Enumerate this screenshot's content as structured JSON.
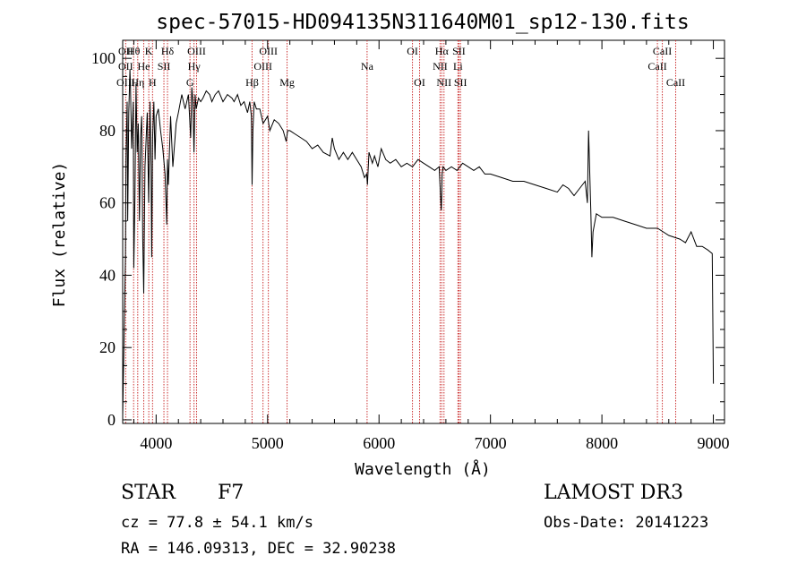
{
  "chart_data": {
    "type": "line",
    "title": "spec-57015-HD094135N311640M01_sp12-130.fits",
    "xlabel": "Wavelength (Å)",
    "ylabel": "Flux (relative)",
    "xlim": [
      3700,
      9100
    ],
    "ylim": [
      -1,
      105
    ],
    "xticks": [
      4000,
      5000,
      6000,
      7000,
      8000,
      9000
    ],
    "xtick_labels": [
      "4000",
      "5000",
      "6000",
      "7000",
      "8000",
      "9000"
    ],
    "yticks": [
      0,
      20,
      40,
      60,
      80,
      100
    ],
    "ytick_labels": [
      "0",
      "20",
      "40",
      "60",
      "80",
      "100"
    ],
    "line_color": "#000000",
    "marker_color": "#cc3333",
    "series": [
      {
        "name": "flux",
        "x": [
          3700,
          3715,
          3725,
          3730,
          3740,
          3745,
          3755,
          3765,
          3770,
          3780,
          3795,
          3800,
          3810,
          3820,
          3830,
          3840,
          3850,
          3860,
          3870,
          3880,
          3889,
          3900,
          3920,
          3933,
          3945,
          3955,
          3960,
          3968,
          3980,
          3990,
          4000,
          4020,
          4040,
          4060,
          4080,
          4095,
          4102,
          4110,
          4130,
          4150,
          4180,
          4200,
          4230,
          4260,
          4290,
          4310,
          4320,
          4330,
          4340,
          4350,
          4360,
          4380,
          4400,
          4420,
          4450,
          4480,
          4500,
          4530,
          4560,
          4600,
          4640,
          4680,
          4700,
          4730,
          4760,
          4790,
          4820,
          4840,
          4855,
          4861,
          4868,
          4880,
          4900,
          4930,
          4960,
          5000,
          5020,
          5060,
          5100,
          5140,
          5167,
          5180,
          5200,
          5250,
          5300,
          5350,
          5400,
          5450,
          5500,
          5560,
          5580,
          5600,
          5640,
          5680,
          5720,
          5760,
          5800,
          5840,
          5870,
          5889,
          5896,
          5910,
          5940,
          5960,
          5990,
          6020,
          6060,
          6100,
          6150,
          6200,
          6250,
          6300,
          6350,
          6400,
          6450,
          6500,
          6540,
          6550,
          6558,
          6562,
          6566,
          6575,
          6600,
          6650,
          6700,
          6750,
          6800,
          6850,
          6900,
          6950,
          7000,
          7100,
          7200,
          7300,
          7400,
          7500,
          7600,
          7650,
          7700,
          7750,
          7800,
          7850,
          7870,
          7880,
          7900,
          7910,
          7920,
          7950,
          8000,
          8100,
          8200,
          8300,
          8400,
          8500,
          8600,
          8700,
          8750,
          8800,
          8850,
          8900,
          8950,
          8990,
          9000
        ],
        "values": [
          1,
          28,
          45,
          72,
          88,
          55,
          85,
          97,
          92,
          75,
          88,
          42,
          62,
          93,
          74,
          82,
          55,
          78,
          84,
          50,
          35,
          70,
          85,
          60,
          88,
          70,
          45,
          78,
          88,
          72,
          84,
          86,
          80,
          75,
          68,
          54,
          72,
          65,
          84,
          70,
          82,
          85,
          90,
          86,
          90,
          78,
          92,
          88,
          74,
          90,
          86,
          89,
          88,
          89,
          91,
          90,
          88,
          90,
          91,
          88,
          90,
          89,
          88,
          90,
          87,
          88,
          85,
          88,
          84,
          65,
          80,
          88,
          86,
          86,
          82,
          84,
          80,
          83,
          82,
          80,
          77,
          80,
          80,
          79,
          78,
          77,
          75,
          76,
          74,
          73,
          78,
          75,
          72,
          74,
          72,
          74,
          72,
          70,
          67,
          68,
          65,
          74,
          71,
          73,
          70,
          75,
          72,
          71,
          72,
          70,
          71,
          70,
          72,
          71,
          70,
          69,
          70,
          63,
          58,
          62,
          68,
          70,
          69,
          70,
          69,
          71,
          70,
          69,
          70,
          68,
          68,
          67,
          66,
          66,
          65,
          64,
          63,
          65,
          64,
          62,
          64,
          66,
          60,
          80,
          58,
          45,
          52,
          57,
          56,
          56,
          55,
          54,
          53,
          53,
          51,
          50,
          49,
          52,
          48,
          48,
          47,
          46,
          10
        ]
      }
    ],
    "lines": [
      {
        "label": "Hθ",
        "wl": 3798,
        "pos": "top"
      },
      {
        "label": "OII",
        "wl": 3727,
        "pos": "top"
      },
      {
        "label": "K",
        "wl": 3934,
        "pos": "top"
      },
      {
        "label": "Hδ",
        "wl": 4102,
        "pos": "top"
      },
      {
        "label": "OIII",
        "wl": 4363,
        "pos": "top"
      },
      {
        "label": "OIII",
        "wl": 5007,
        "pos": "top"
      },
      {
        "label": "OI",
        "wl": 6300,
        "pos": "top"
      },
      {
        "label": "Hα",
        "wl": 6563,
        "pos": "top"
      },
      {
        "label": "SII",
        "wl": 6717,
        "pos": "top"
      },
      {
        "label": "CaII",
        "wl": 8542,
        "pos": "top"
      },
      {
        "label": "OII",
        "wl": 3727,
        "pos": "mid"
      },
      {
        "label": "He",
        "wl": 3889,
        "pos": "mid"
      },
      {
        "label": "SII",
        "wl": 4070,
        "pos": "mid"
      },
      {
        "label": "Hγ",
        "wl": 4340,
        "pos": "mid"
      },
      {
        "label": "OIII",
        "wl": 4959,
        "pos": "mid"
      },
      {
        "label": "Na",
        "wl": 5893,
        "pos": "mid"
      },
      {
        "label": "NII",
        "wl": 6548,
        "pos": "mid"
      },
      {
        "label": "Li",
        "wl": 6708,
        "pos": "mid"
      },
      {
        "label": "CaII",
        "wl": 8498,
        "pos": "mid"
      },
      {
        "label": "OIII",
        "wl": 3727,
        "pos": "low"
      },
      {
        "label": "Hη",
        "wl": 3835,
        "pos": "low"
      },
      {
        "label": "H",
        "wl": 3968,
        "pos": "low"
      },
      {
        "label": "G",
        "wl": 4304,
        "pos": "low"
      },
      {
        "label": "Hβ",
        "wl": 4861,
        "pos": "low"
      },
      {
        "label": "Mg",
        "wl": 5175,
        "pos": "low"
      },
      {
        "label": "OI",
        "wl": 6364,
        "pos": "low"
      },
      {
        "label": "NII",
        "wl": 6583,
        "pos": "low"
      },
      {
        "label": "SII",
        "wl": 6731,
        "pos": "low"
      },
      {
        "label": "CaII",
        "wl": 8662,
        "pos": "low"
      }
    ]
  },
  "info": {
    "object_type": "STAR",
    "subclass": "F7",
    "survey": "LAMOST DR3",
    "cz_line": "cz = 77.8 ± 54.1 km/s",
    "obs_date_line": "Obs-Date: 20141223",
    "radec_line": "RA = 146.09313, DEC =  32.90238"
  }
}
